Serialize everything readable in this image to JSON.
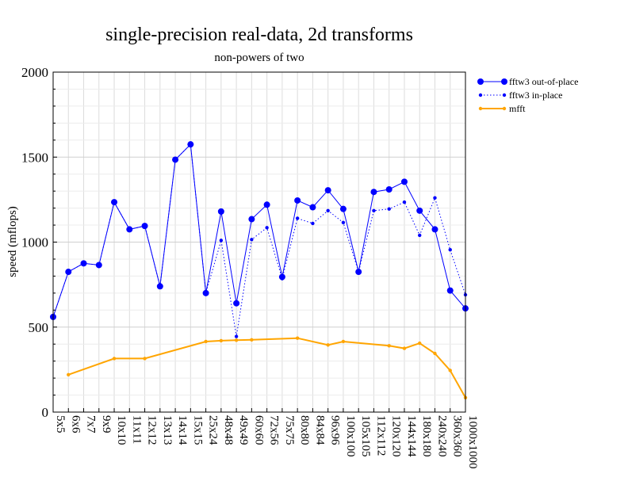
{
  "chart_data": {
    "type": "line",
    "title": "single-precision real-data, 2d transforms",
    "subtitle": "non-powers of two",
    "xlabel": "",
    "ylabel": "speed (mflops)",
    "ylim": [
      0,
      2000
    ],
    "yticks": [
      0,
      500,
      1000,
      1500,
      2000
    ],
    "grid": true,
    "legend_position": "right",
    "categories": [
      "5x5",
      "6x6",
      "7x7",
      "9x9",
      "10x10",
      "11x11",
      "12x12",
      "13x13",
      "14x14",
      "15x15",
      "25x24",
      "48x48",
      "49x49",
      "60x60",
      "72x56",
      "75x75",
      "80x80",
      "84x84",
      "96x96",
      "100x100",
      "105x105",
      "112x112",
      "120x120",
      "144x144",
      "180x180",
      "240x240",
      "360x360",
      "1000x1000"
    ],
    "series": [
      {
        "name": "fftw3 out-of-place",
        "color": "#0000ff",
        "style": "solid",
        "marker": "large-dot",
        "values": [
          560,
          825,
          875,
          865,
          1235,
          1075,
          1095,
          740,
          1485,
          1575,
          700,
          1180,
          640,
          1135,
          1220,
          795,
          1245,
          1205,
          1305,
          1195,
          825,
          1295,
          1310,
          1355,
          1185,
          1075,
          715,
          610
        ]
      },
      {
        "name": "fftw3 in-place",
        "color": "#0000ff",
        "style": "dotted",
        "marker": "small-dot",
        "values": [
          560,
          825,
          875,
          865,
          1235,
          1075,
          1095,
          740,
          1485,
          1575,
          700,
          1010,
          445,
          1015,
          1085,
          785,
          1140,
          1110,
          1185,
          1115,
          825,
          1185,
          1195,
          1235,
          1040,
          1260,
          955,
          690
        ]
      },
      {
        "name": "mfft",
        "color": "#ffa500",
        "style": "solid",
        "marker": "small-dot",
        "values": [
          null,
          220,
          null,
          null,
          315,
          null,
          315,
          null,
          null,
          null,
          415,
          420,
          423,
          425,
          null,
          null,
          435,
          null,
          395,
          415,
          null,
          null,
          390,
          375,
          405,
          345,
          245,
          85
        ]
      }
    ]
  }
}
